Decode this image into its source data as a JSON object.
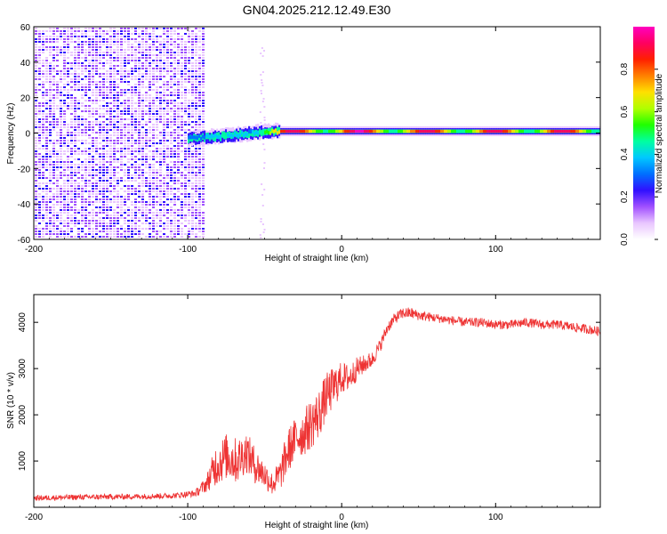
{
  "title": "GN04.2025.212.12.49.E30",
  "chart_data": [
    {
      "type": "heatmap",
      "title": "",
      "xlabel": "Height of straight line (km)",
      "ylabel": "Frequency (Hz)",
      "xlim": [
        -200,
        168
      ],
      "ylim": [
        -60,
        60
      ],
      "x_ticks": [
        "-200",
        "-100",
        "0",
        "100"
      ],
      "x_tick_values": [
        -200,
        -100,
        0,
        100
      ],
      "y_ticks": [
        "60",
        "40",
        "20",
        "0",
        "-20",
        "-40",
        "-60"
      ],
      "y_tick_values": [
        60,
        40,
        20,
        0,
        -20,
        -40,
        -60
      ],
      "colorbar": {
        "label": "Normalized spectral amplitude",
        "ticks": [
          "0.0",
          "0.2",
          "0.4",
          "0.6",
          "0.8"
        ],
        "tick_values": [
          0.0,
          0.2,
          0.4,
          0.6,
          0.8
        ],
        "range": [
          0,
          1
        ],
        "colors": [
          "#ffffff",
          "#e9c6ff",
          "#a050ff",
          "#3010ff",
          "#0070ff",
          "#00c8ff",
          "#00ffa0",
          "#20ff00",
          "#b0ff00",
          "#ffe000",
          "#ff8000",
          "#ff2000",
          "#ff0060",
          "#ff00c0"
        ]
      },
      "noise_region_km": [
        -200,
        -90
      ],
      "signal_band": [
        {
          "x": -100,
          "f": -3,
          "amp": 0.45
        },
        {
          "x": -80,
          "f": -2,
          "amp": 0.5
        },
        {
          "x": -60,
          "f": 0,
          "amp": 0.5
        },
        {
          "x": -45,
          "f": 1,
          "amp": 0.9
        },
        {
          "x": -25,
          "f": 1,
          "amp": 0.95
        },
        {
          "x": 0,
          "f": 1,
          "amp": 1.0
        },
        {
          "x": 50,
          "f": 1,
          "amp": 0.95
        },
        {
          "x": 100,
          "f": 1,
          "amp": 0.95
        },
        {
          "x": 168,
          "f": 1,
          "amp": 0.95
        }
      ]
    },
    {
      "type": "line",
      "title": "",
      "xlabel": "Height of straight line (km)",
      "ylabel": "SNR (10 * v/v)",
      "xlim": [
        -200,
        168
      ],
      "ylim": [
        0,
        4600
      ],
      "x_ticks": [
        "-200",
        "-100",
        "0",
        "100"
      ],
      "x_tick_values": [
        -200,
        -100,
        0,
        100
      ],
      "y_ticks": [
        "1000",
        "2000",
        "3000",
        "4000"
      ],
      "y_tick_values": [
        1000,
        2000,
        3000,
        4000
      ],
      "color": "#ee3333",
      "series": [
        {
          "x": [
            -200,
            -170,
            -140,
            -110,
            -95,
            -88,
            -82,
            -75,
            -68,
            -62,
            -56,
            -50,
            -45,
            -40,
            -35,
            -30,
            -25,
            -20,
            -15,
            -10,
            -5,
            0,
            5,
            10,
            15,
            20,
            25,
            30,
            35,
            40,
            45,
            50,
            60,
            70,
            80,
            90,
            100,
            110,
            120,
            130,
            140,
            150,
            160,
            168
          ],
          "values": [
            200,
            220,
            230,
            250,
            300,
            500,
            900,
            1100,
            1000,
            1200,
            900,
            700,
            500,
            700,
            1200,
            1500,
            1600,
            1800,
            2000,
            2400,
            2600,
            2800,
            2800,
            3000,
            3100,
            3200,
            3500,
            3900,
            4100,
            4200,
            4200,
            4150,
            4100,
            4050,
            4000,
            4000,
            3950,
            3950,
            4000,
            3950,
            3950,
            3900,
            3850,
            3800
          ],
          "spread": [
            120,
            120,
            120,
            120,
            150,
            350,
            900,
            1000,
            1000,
            900,
            800,
            600,
            500,
            700,
            1000,
            900,
            1000,
            1100,
            1100,
            1000,
            900,
            700,
            600,
            500,
            400,
            350,
            300,
            250,
            250,
            250,
            250,
            220,
            200,
            200,
            200,
            200,
            200,
            200,
            200,
            200,
            200,
            200,
            200,
            200
          ]
        }
      ]
    }
  ]
}
